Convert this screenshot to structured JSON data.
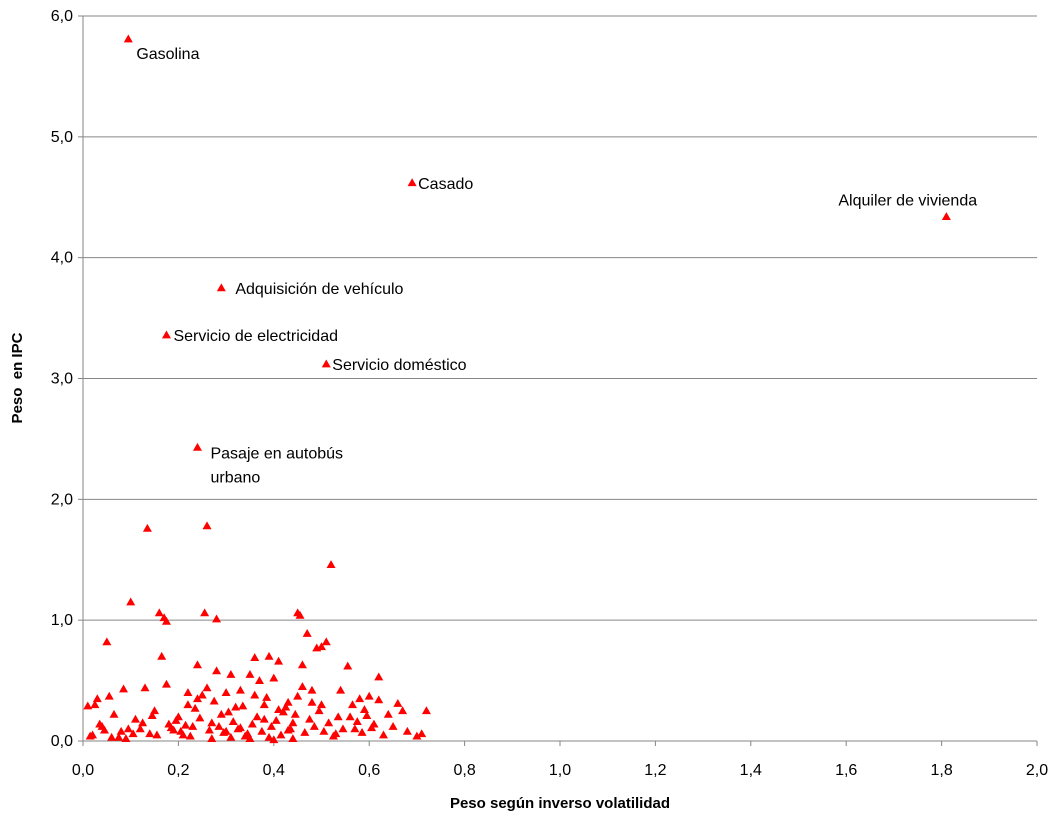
{
  "chart_data": {
    "type": "scatter",
    "xlabel": "Peso según inverso volatilidad",
    "ylabel": "Peso  en IPC",
    "marker": "triangle",
    "color": "#ff0000",
    "grid": true,
    "xlim": [
      0,
      2
    ],
    "ylim": [
      0,
      6
    ],
    "xticks": [
      {
        "value": 0,
        "label": "0,0"
      },
      {
        "value": 0.2,
        "label": "0,2"
      },
      {
        "value": 0.4,
        "label": "0,4"
      },
      {
        "value": 0.6,
        "label": "0,6"
      },
      {
        "value": 0.8,
        "label": "0,8"
      },
      {
        "value": 1.0,
        "label": "1,0"
      },
      {
        "value": 1.2,
        "label": "1,2"
      },
      {
        "value": 1.4,
        "label": "1,4"
      },
      {
        "value": 1.6,
        "label": "1,6"
      },
      {
        "value": 1.8,
        "label": "1,8"
      },
      {
        "value": 2.0,
        "label": "2,0"
      }
    ],
    "yticks": [
      {
        "value": 0,
        "label": "0,0"
      },
      {
        "value": 1,
        "label": "1,0"
      },
      {
        "value": 2,
        "label": "2,0"
      },
      {
        "value": 3,
        "label": "3,0"
      },
      {
        "value": 4,
        "label": "4,0"
      },
      {
        "value": 5,
        "label": "5,0"
      },
      {
        "value": 6,
        "label": "6,0"
      }
    ],
    "series": [
      {
        "x": [
          0.135,
          0.26,
          0.52,
          0.1,
          0.16,
          0.17,
          0.175,
          0.255,
          0.28,
          0.45,
          0.455,
          0.47,
          0.51,
          0.49,
          0.5,
          0.05,
          0.165,
          0.36,
          0.39,
          0.41,
          0.46,
          0.24,
          0.555,
          0.46,
          0.62,
          0.31,
          0.085,
          0.13,
          0.175,
          0.28,
          0.37,
          0.4,
          0.35,
          0.54,
          0.58,
          0.6,
          0.66,
          0.62,
          0.67,
          0.72,
          0.03,
          0.055,
          0.01,
          0.025,
          0.065,
          0.02,
          0.04,
          0.06,
          0.08,
          0.09,
          0.11,
          0.12,
          0.14,
          0.15,
          0.18,
          0.19,
          0.2,
          0.21,
          0.22,
          0.23,
          0.25,
          0.27,
          0.29,
          0.3,
          0.32,
          0.33,
          0.34,
          0.38,
          0.42,
          0.43,
          0.44,
          0.48,
          0.53,
          0.56,
          0.57,
          0.59,
          0.61,
          0.63,
          0.64,
          0.65,
          0.68,
          0.7,
          0.71,
          0.015,
          0.035,
          0.045,
          0.075,
          0.095,
          0.105,
          0.125,
          0.145,
          0.155,
          0.185,
          0.195,
          0.205,
          0.215,
          0.225,
          0.235,
          0.245,
          0.265,
          0.275,
          0.285,
          0.295,
          0.305,
          0.315,
          0.325,
          0.335,
          0.345,
          0.355,
          0.365,
          0.375,
          0.385,
          0.395,
          0.405,
          0.415,
          0.425,
          0.435,
          0.445,
          0.465,
          0.475,
          0.485,
          0.495,
          0.505,
          0.515,
          0.525,
          0.535,
          0.545,
          0.565,
          0.575,
          0.585,
          0.595,
          0.605,
          0.22,
          0.24,
          0.26,
          0.3,
          0.33,
          0.36,
          0.38,
          0.41,
          0.43,
          0.45,
          0.48,
          0.5,
          0.27,
          0.31,
          0.35,
          0.4,
          0.44,
          0.39
        ],
        "values": [
          1.76,
          1.78,
          1.46,
          1.15,
          1.06,
          1.02,
          0.99,
          1.06,
          1.01,
          1.06,
          1.04,
          0.89,
          0.82,
          0.77,
          0.78,
          0.82,
          0.7,
          0.69,
          0.7,
          0.66,
          0.63,
          0.63,
          0.62,
          0.45,
          0.53,
          0.55,
          0.43,
          0.44,
          0.47,
          0.58,
          0.5,
          0.52,
          0.55,
          0.42,
          0.35,
          0.37,
          0.31,
          0.34,
          0.25,
          0.25,
          0.35,
          0.37,
          0.29,
          0.3,
          0.22,
          0.05,
          0.12,
          0.03,
          0.08,
          0.02,
          0.18,
          0.1,
          0.06,
          0.25,
          0.14,
          0.09,
          0.2,
          0.05,
          0.3,
          0.12,
          0.38,
          0.15,
          0.22,
          0.08,
          0.28,
          0.11,
          0.04,
          0.18,
          0.24,
          0.09,
          0.15,
          0.32,
          0.06,
          0.2,
          0.1,
          0.26,
          0.14,
          0.05,
          0.22,
          0.12,
          0.08,
          0.04,
          0.06,
          0.04,
          0.14,
          0.09,
          0.03,
          0.1,
          0.06,
          0.15,
          0.21,
          0.05,
          0.11,
          0.17,
          0.08,
          0.13,
          0.04,
          0.27,
          0.19,
          0.09,
          0.33,
          0.12,
          0.07,
          0.24,
          0.16,
          0.1,
          0.29,
          0.06,
          0.14,
          0.2,
          0.08,
          0.36,
          0.12,
          0.17,
          0.05,
          0.28,
          0.1,
          0.22,
          0.07,
          0.18,
          0.12,
          0.25,
          0.08,
          0.15,
          0.04,
          0.2,
          0.1,
          0.3,
          0.16,
          0.07,
          0.21,
          0.11,
          0.4,
          0.35,
          0.44,
          0.4,
          0.42,
          0.38,
          0.3,
          0.26,
          0.32,
          0.37,
          0.42,
          0.3,
          0.02,
          0.03,
          0.02,
          0.01,
          0.02,
          0.03
        ]
      },
      {
        "x": [
          0.095,
          0.69,
          1.81,
          0.29,
          0.175,
          0.51,
          0.24
        ],
        "values": [
          5.81,
          4.62,
          4.34,
          3.75,
          3.36,
          3.12,
          2.43
        ],
        "labels": [
          [
            "Gasolina"
          ],
          [
            "Casado"
          ],
          [
            "Alquiler de vivienda"
          ],
          [
            "Adquisición de vehículo"
          ],
          [
            "Servicio de electricidad"
          ],
          [
            "Servicio doméstico"
          ],
          [
            "Pasaje en autobús",
            "urbano"
          ]
        ]
      }
    ]
  }
}
